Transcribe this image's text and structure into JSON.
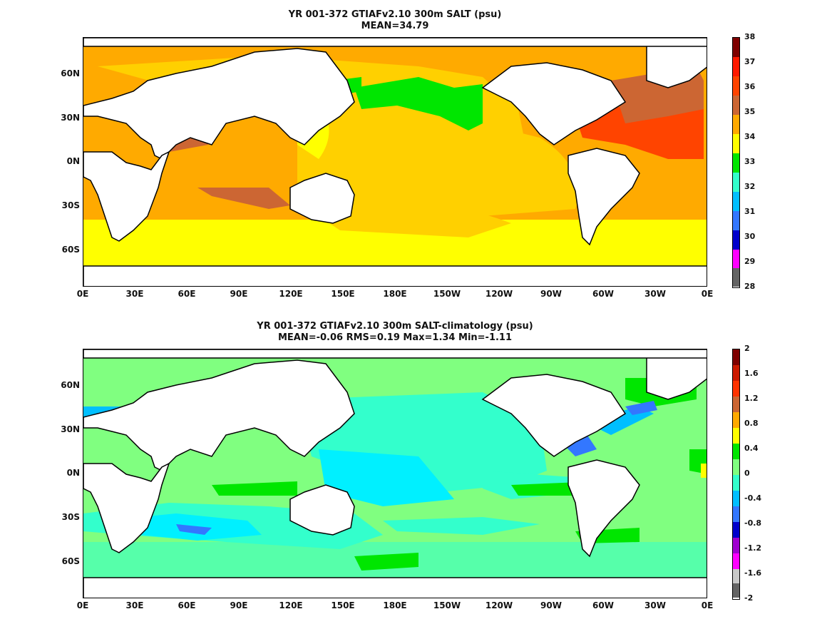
{
  "panels": [
    {
      "title_line1": "YR 001-372 GTIAFv2.10 300m SALT (psu)",
      "title_line2": "MEAN=34.79",
      "colorbar": {
        "labels": [
          "38",
          "37",
          "36",
          "35",
          "34",
          "33",
          "32",
          "31",
          "30",
          "29",
          "28"
        ],
        "colors": [
          "#7f0000",
          "#ff1a00",
          "#cc6633",
          "#ffaa00",
          "#ffff00",
          "#00e600",
          "#33ffcc",
          "#00bfff",
          "#3377ff",
          "#0000cc",
          "#ff00ff",
          "#c8c8c8",
          "#646464"
        ]
      }
    },
    {
      "title_line1": "YR 001-372 GTIAFv2.10 300m SALT-climatology (psu)",
      "title_line2": "MEAN=-0.06   RMS=0.19   Max=1.34   Min=-1.11",
      "colorbar": {
        "labels": [
          "2",
          "1.6",
          "1.2",
          "0.8",
          "0.4",
          "0",
          "-0.4",
          "-0.8",
          "-1.2",
          "-1.6",
          "-2"
        ],
        "colors": [
          "#7f0000",
          "#cc1a00",
          "#ff3300",
          "#cc6633",
          "#ffaa00",
          "#ffff00",
          "#00e600",
          "#80ff80",
          "#33ffcc",
          "#00bfff",
          "#3377ff",
          "#0000cc",
          "#a000d0",
          "#ff00ff",
          "#c8c8c8",
          "#646464"
        ]
      }
    }
  ],
  "axes": {
    "lat_labels": [
      "60N",
      "30N",
      "0N",
      "30S",
      "60S"
    ],
    "lon_labels": [
      "0E",
      "30E",
      "60E",
      "90E",
      "120E",
      "150E",
      "180E",
      "150W",
      "120W",
      "90W",
      "60W",
      "30W",
      "0E"
    ]
  }
}
